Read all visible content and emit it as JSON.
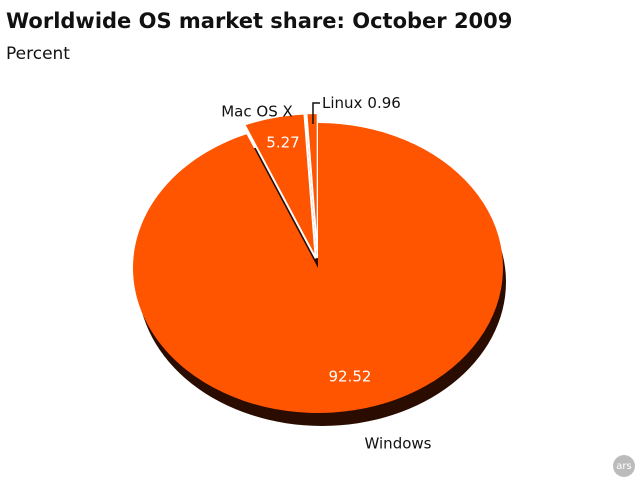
{
  "chart_data": {
    "type": "pie",
    "title": "Worldwide OS market share: October 2009",
    "subtitle": "Percent",
    "categories": [
      "Windows",
      "Mac OS X",
      "Linux"
    ],
    "values": [
      92.52,
      5.27,
      0.96
    ],
    "colors": [
      "#ff5400",
      "#ff5400",
      "#ff5400"
    ]
  },
  "watermark": "ars"
}
